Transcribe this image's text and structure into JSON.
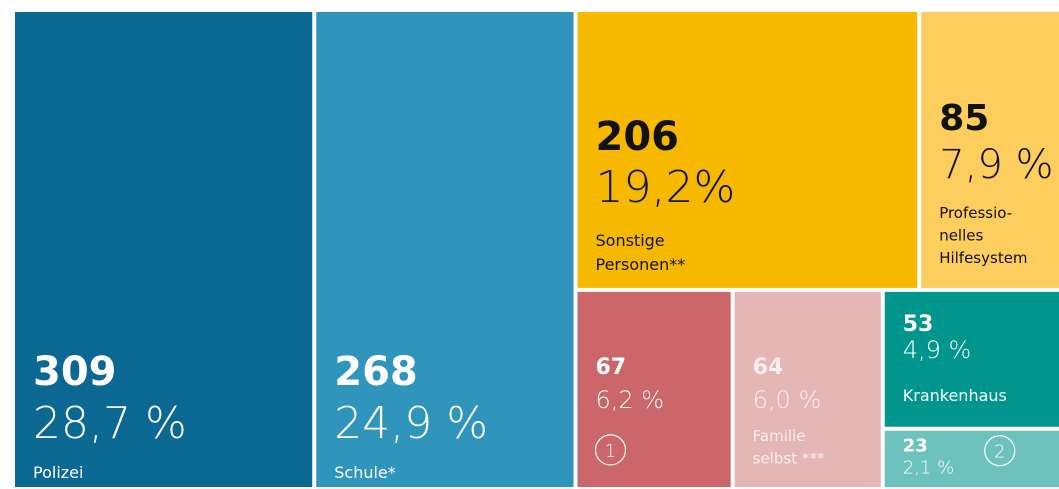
{
  "chart_data": {
    "type": "treemap",
    "categories": [
      "Polizei",
      "Schule*",
      "Sonstige\nPersonen**",
      "Professio-\nnelles\nHilfesystem",
      "1",
      "Familie\nselbst ***",
      "Krankenhaus",
      "2"
    ],
    "values": [
      309,
      268,
      206,
      85,
      67,
      64,
      53,
      23
    ],
    "percents": [
      28.7,
      24.9,
      19.2,
      7.9,
      6.2,
      6.0,
      4.9,
      2.1
    ],
    "percent_labels": [
      "28,7 %",
      "24,9 %",
      "19,2%",
      "7,9 %",
      "6,2 %",
      "6,0 %",
      "4,9 %",
      "2,1 %"
    ],
    "colors": [
      "#0a6893",
      "#2f95bc",
      "#f7b800",
      "#fdcd5e",
      "#cb666b",
      "#e4b6b5",
      "#00968e",
      "#6dc2be"
    ]
  }
}
